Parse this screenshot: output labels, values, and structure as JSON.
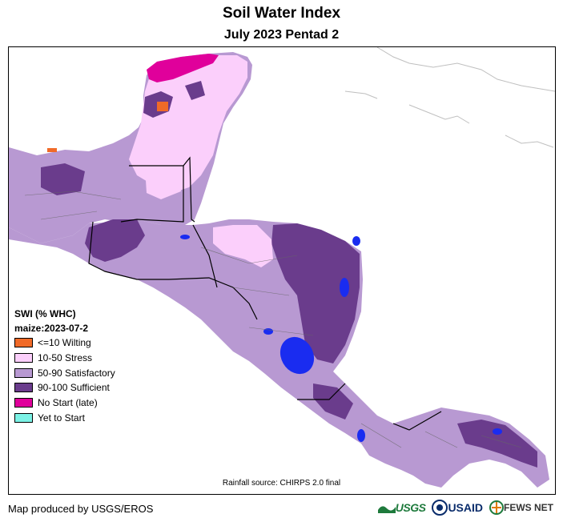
{
  "header": {
    "title": "Soil Water Index",
    "subtitle": "July 2023 Pentad 2"
  },
  "legend": {
    "title": "SWI (% WHC)",
    "subtitle": "maize:2023-07-2",
    "items": [
      {
        "label": "<=10 Wilting",
        "color": "#f06a28"
      },
      {
        "label": "10-50 Stress",
        "color": "#fbcffb"
      },
      {
        "label": "50-90 Satisfactory",
        "color": "#b899d2"
      },
      {
        "label": "90-100 Sufficient",
        "color": "#6a3c8c"
      },
      {
        "label": "No Start (late)",
        "color": "#e0009b"
      },
      {
        "label": "Yet to Start",
        "color": "#7cf2e6"
      }
    ]
  },
  "water_color": "#1a2cf0",
  "source_note": "Rainfall source: CHIRPS 2.0 final",
  "credit": "Map produced by USGS/EROS",
  "logos": {
    "usgs": "USGS",
    "usaid": "USAID",
    "fews": "FEWS NET"
  }
}
